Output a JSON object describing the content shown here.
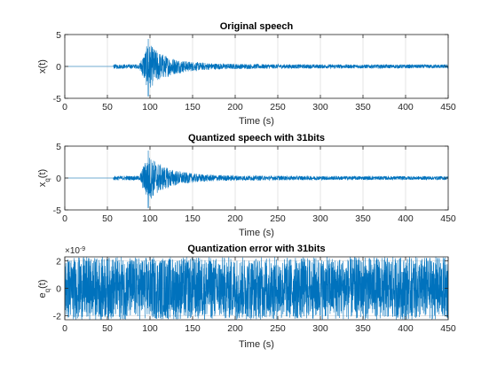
{
  "chart_data": [
    {
      "type": "line",
      "title": "Original speech",
      "xlabel": "Time (s)",
      "ylabel": "x(t)",
      "xlim": [
        0,
        450
      ],
      "ylim": [
        -5,
        5
      ],
      "xticks": [
        0,
        50,
        100,
        150,
        200,
        250,
        300,
        350,
        400,
        450
      ],
      "yticks": [
        -5,
        0,
        5
      ],
      "grid": true,
      "color": "#0072BD",
      "signal": {
        "kind": "speech",
        "onset": 57,
        "burst_start": 88,
        "peak_time": 98,
        "peak_pos": 4.3,
        "peak_neg": -4.7,
        "end": 450
      }
    },
    {
      "type": "line",
      "title": "Quantized speech with 31bits",
      "xlabel": "Time (s)",
      "ylabel": "x",
      "ylabel_sub": "q",
      "ylabel_suffix": "(t)",
      "xlim": [
        0,
        450
      ],
      "ylim": [
        -5,
        5
      ],
      "xticks": [
        0,
        50,
        100,
        150,
        200,
        250,
        300,
        350,
        400,
        450
      ],
      "yticks": [
        -5,
        0,
        5
      ],
      "grid": true,
      "color": "#0072BD",
      "signal": {
        "kind": "speech",
        "onset": 57,
        "burst_start": 88,
        "peak_time": 98,
        "peak_pos": 4.3,
        "peak_neg": -4.7,
        "end": 450
      }
    },
    {
      "type": "line",
      "title": "Quantization error with 31bits",
      "xlabel": "Time (s)",
      "ylabel": "e",
      "ylabel_sub": "q",
      "ylabel_suffix": "(t)",
      "xlim": [
        0,
        450
      ],
      "ylim": [
        -2.3,
        2.3
      ],
      "xticks": [
        0,
        50,
        100,
        150,
        200,
        250,
        300,
        350,
        400,
        450
      ],
      "yticks": [
        -2,
        0,
        2
      ],
      "y_exponent_base": "×10",
      "y_exponent": "-9",
      "grid": true,
      "color": "#0072BD",
      "signal": {
        "kind": "uniform_noise",
        "amplitude": 2.3
      }
    }
  ]
}
